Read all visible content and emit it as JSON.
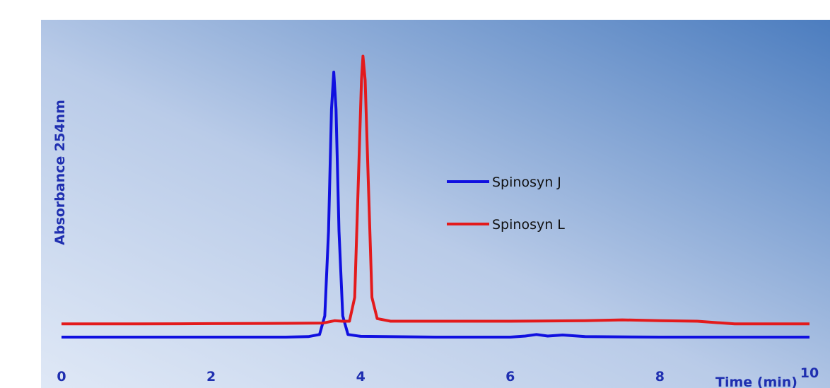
{
  "chart_data": {
    "type": "line",
    "title": "",
    "xlabel": "Time (min)",
    "ylabel": "Absorbance 254nm",
    "xlim": [
      0,
      10
    ],
    "ylim": [
      0,
      1
    ],
    "x_ticks": [
      "0",
      "2",
      "4",
      "6",
      "8",
      "10"
    ],
    "grid": false,
    "legend_placement": "center",
    "series": [
      {
        "name": "Spinosyn J",
        "color": "#1010e0",
        "points": [
          [
            0,
            0.0
          ],
          [
            1,
            0.0
          ],
          [
            2,
            0.0
          ],
          [
            3,
            0.0
          ],
          [
            3.3,
            0.002
          ],
          [
            3.45,
            0.01
          ],
          [
            3.52,
            0.08
          ],
          [
            3.57,
            0.4
          ],
          [
            3.61,
            0.86
          ],
          [
            3.64,
            1.0
          ],
          [
            3.67,
            0.86
          ],
          [
            3.71,
            0.4
          ],
          [
            3.76,
            0.08
          ],
          [
            3.83,
            0.01
          ],
          [
            4.0,
            0.003
          ],
          [
            5,
            0.0
          ],
          [
            6,
            0.0
          ],
          [
            6.2,
            0.004
          ],
          [
            6.35,
            0.01
          ],
          [
            6.5,
            0.004
          ],
          [
            6.7,
            0.008
          ],
          [
            7,
            0.002
          ],
          [
            8,
            0.0
          ],
          [
            9,
            0.0
          ],
          [
            10,
            0.0
          ]
        ]
      },
      {
        "name": "Spinosyn L",
        "color": "#e31a1c",
        "points": [
          [
            0,
            0.05
          ],
          [
            1,
            0.05
          ],
          [
            2,
            0.051
          ],
          [
            3,
            0.052
          ],
          [
            3.5,
            0.053
          ],
          [
            3.65,
            0.062
          ],
          [
            3.75,
            0.06
          ],
          [
            3.85,
            0.06
          ],
          [
            3.92,
            0.15
          ],
          [
            3.97,
            0.6
          ],
          [
            4.01,
            0.97
          ],
          [
            4.03,
            1.06
          ],
          [
            4.06,
            0.97
          ],
          [
            4.1,
            0.6
          ],
          [
            4.15,
            0.15
          ],
          [
            4.22,
            0.07
          ],
          [
            4.4,
            0.06
          ],
          [
            5,
            0.06
          ],
          [
            6,
            0.06
          ],
          [
            7,
            0.062
          ],
          [
            7.5,
            0.065
          ],
          [
            8,
            0.062
          ],
          [
            8.5,
            0.06
          ],
          [
            9,
            0.05
          ],
          [
            9.5,
            0.05
          ],
          [
            10,
            0.05
          ]
        ]
      }
    ]
  }
}
